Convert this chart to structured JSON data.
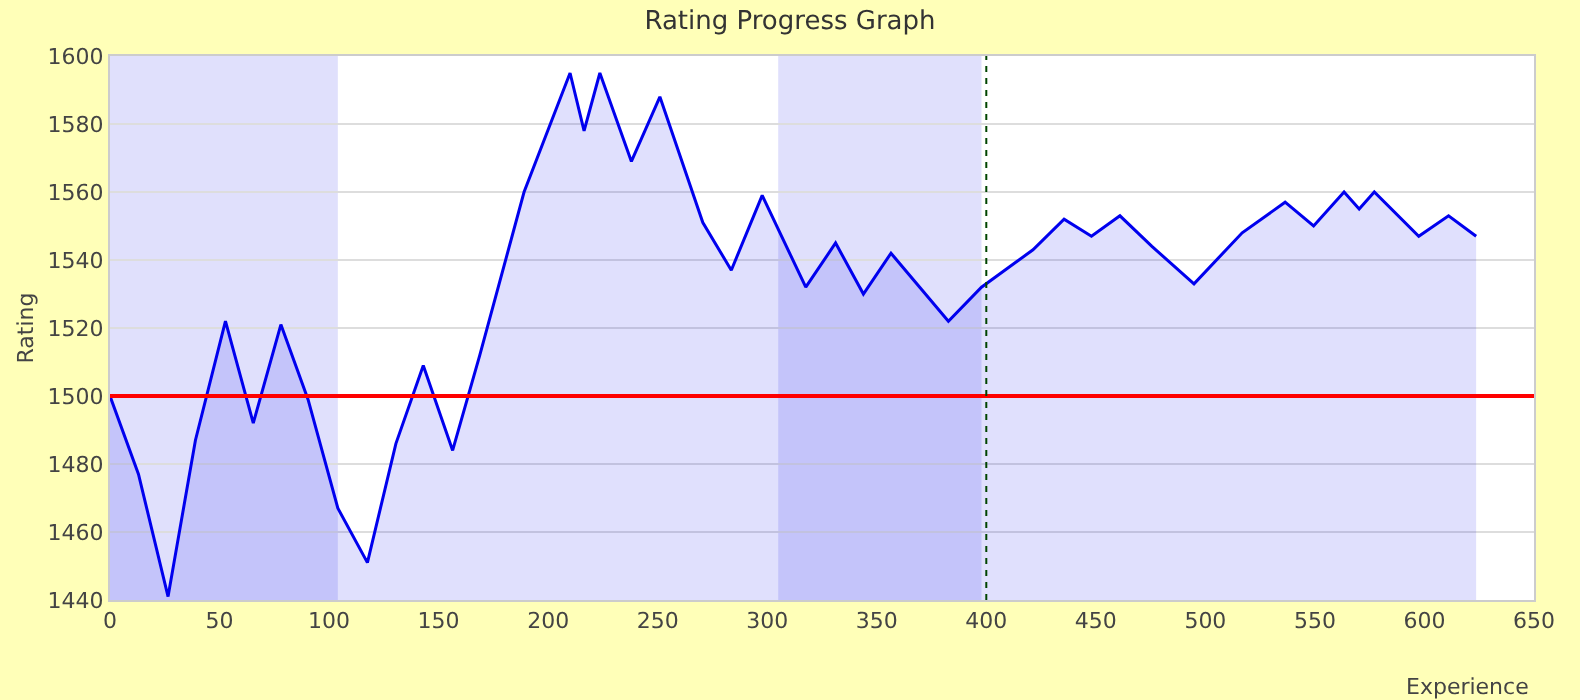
{
  "chart_data": {
    "type": "area",
    "title": "Rating Progress Graph",
    "xlabel": "Experience",
    "ylabel": "Rating",
    "x": [
      0,
      13,
      26.5,
      39,
      52.7,
      65.4,
      78,
      90.4,
      104,
      117.5,
      130.5,
      143,
      156.4,
      168.8,
      189,
      210,
      216.4,
      223.6,
      238,
      251,
      270.6,
      283.6,
      297.7,
      317.6,
      331.2,
      343.9,
      356.5,
      382.7,
      397.8,
      421.3,
      435.5,
      448,
      461,
      475.6,
      494.8,
      516.8,
      536.4,
      549.4,
      563.3,
      570.2,
      577.1,
      597.4,
      611,
      623.6
    ],
    "series": [
      {
        "color": "#0000ee",
        "values": [
          1500,
          1477,
          1441,
          1487,
          1522,
          1492,
          1521,
          1499,
          1467,
          1451,
          1486,
          1509,
          1484,
          1512,
          1560,
          1595,
          1578,
          1595,
          1569,
          1588,
          1551,
          1537,
          1559,
          1532,
          1545,
          1530,
          1542,
          1522,
          1532,
          1543,
          1552,
          1547,
          1553,
          1544,
          1533,
          1548,
          1557,
          1550,
          1560,
          1555,
          1560,
          1547,
          1553,
          1547
        ]
      }
    ],
    "xlim": [
      0,
      650
    ],
    "xticks": [
      0,
      50,
      100,
      150,
      200,
      250,
      300,
      350,
      400,
      450,
      500,
      550,
      600,
      650
    ],
    "ylim": [
      1440,
      1600
    ],
    "yticks": [
      1440,
      1460,
      1480,
      1500,
      1520,
      1540,
      1560,
      1580,
      1600
    ],
    "grid": "y",
    "ref_lines": [
      {
        "axis": "y",
        "value": 1500,
        "color": "#ff0000",
        "line_style": "solid"
      },
      {
        "axis": "x",
        "value": 400,
        "color": "#004400",
        "line_style": "dotted"
      }
    ],
    "bands": [
      {
        "axis": "x",
        "from": 0,
        "to": 104,
        "color": "#ccccfa"
      },
      {
        "axis": "x",
        "from": 305,
        "to": 397.8,
        "color": "#ccccfa"
      }
    ]
  }
}
